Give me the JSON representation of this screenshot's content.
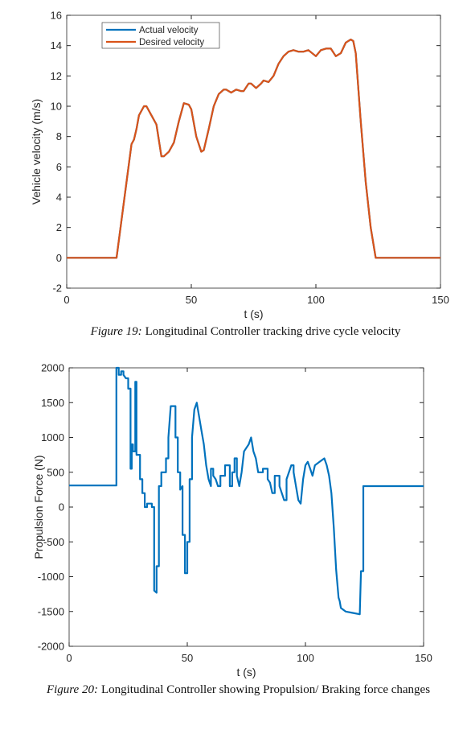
{
  "chart_data": [
    {
      "type": "line",
      "caption_label": "Figure 19:",
      "caption": "Longitudinal Controller tracking drive cycle velocity",
      "xlabel": "t (s)",
      "ylabel": "Vehicle velocity (m/s)",
      "xlim": [
        0,
        150
      ],
      "xticks": [
        0,
        50,
        100,
        150
      ],
      "ylim": [
        -2,
        16
      ],
      "yticks": [
        -2,
        0,
        2,
        4,
        6,
        8,
        10,
        12,
        14,
        16
      ],
      "legend": "upper left",
      "grid": false,
      "x": [
        0,
        20,
        24,
        26,
        27,
        28,
        29,
        31,
        32,
        34,
        36,
        38,
        39,
        41,
        43,
        45,
        47,
        49,
        50,
        52,
        54,
        55,
        57,
        59,
        61,
        63,
        64,
        66,
        68,
        70,
        71,
        73,
        74,
        76,
        78,
        79,
        81,
        83,
        85,
        87,
        89,
        91,
        93,
        95,
        97,
        100,
        102,
        104,
        106,
        108,
        110,
        112,
        114,
        115,
        116,
        118,
        120,
        122,
        124,
        150
      ],
      "series": [
        {
          "name": "Actual velocity",
          "color": "#0072bd",
          "values": [
            0,
            0,
            5,
            7.5,
            7.8,
            8.5,
            9.4,
            10,
            10,
            9.4,
            8.8,
            6.7,
            6.7,
            7,
            7.6,
            9,
            10.2,
            10.1,
            9.8,
            8,
            7,
            7.1,
            8.5,
            10,
            10.8,
            11.1,
            11.1,
            10.9,
            11.1,
            11,
            11,
            11.5,
            11.5,
            11.2,
            11.5,
            11.7,
            11.6,
            12,
            12.8,
            13.3,
            13.6,
            13.7,
            13.6,
            13.6,
            13.7,
            13.3,
            13.7,
            13.8,
            13.8,
            13.3,
            13.5,
            14.2,
            14.4,
            14.3,
            13.5,
            9,
            5,
            2,
            0,
            0
          ]
        },
        {
          "name": "Desired velocity",
          "color": "#d95319",
          "values": [
            0,
            0,
            5,
            7.5,
            7.8,
            8.5,
            9.4,
            10,
            10,
            9.4,
            8.8,
            6.7,
            6.7,
            7,
            7.6,
            9,
            10.2,
            10.1,
            9.8,
            8,
            7,
            7.1,
            8.5,
            10,
            10.8,
            11.1,
            11.1,
            10.9,
            11.1,
            11,
            11,
            11.5,
            11.5,
            11.2,
            11.5,
            11.7,
            11.6,
            12,
            12.8,
            13.3,
            13.6,
            13.7,
            13.6,
            13.6,
            13.7,
            13.3,
            13.7,
            13.8,
            13.8,
            13.3,
            13.5,
            14.2,
            14.4,
            14.3,
            13.5,
            9,
            5,
            2,
            0,
            0
          ]
        }
      ]
    },
    {
      "type": "line",
      "caption_label": "Figure 20:",
      "caption": "Longitudinal Controller showing Propulsion/ Braking force changes",
      "xlabel": "t (s)",
      "ylabel": "Propulsion Force (N)",
      "xlim": [
        0,
        150
      ],
      "xticks": [
        0,
        50,
        100,
        150
      ],
      "ylim": [
        -2000,
        2000
      ],
      "yticks": [
        -2000,
        -1500,
        -1000,
        -500,
        0,
        500,
        1000,
        1500,
        2000
      ],
      "grid": false,
      "x": [
        0,
        20,
        20,
        21,
        21,
        22,
        22,
        23,
        23,
        24,
        25,
        25,
        26,
        26,
        26.5,
        26.5,
        27,
        27,
        28,
        28,
        28.5,
        28.5,
        30,
        30,
        31,
        31,
        32,
        32,
        33,
        33,
        35,
        35,
        36,
        36,
        37,
        37,
        38,
        38,
        39,
        39,
        41,
        41,
        42,
        42,
        43,
        45,
        45,
        46,
        46,
        47,
        47,
        48,
        48,
        49,
        49,
        50,
        50,
        51,
        51,
        52,
        52,
        53,
        54,
        55,
        56,
        57,
        58,
        59,
        60,
        60,
        61,
        61,
        62,
        63,
        64,
        64,
        66,
        66,
        68,
        68,
        69,
        69,
        70,
        70,
        71,
        71,
        72,
        73,
        74,
        76,
        77,
        78,
        79,
        80,
        82,
        82,
        84,
        84,
        85,
        86,
        87,
        87,
        89,
        89,
        90,
        91,
        92,
        92,
        94,
        95,
        95,
        96,
        97,
        98,
        99,
        100,
        101,
        102,
        103,
        104,
        106,
        108,
        109,
        110,
        111,
        112,
        113,
        114,
        114.5,
        115,
        117,
        120,
        123,
        123.5,
        124.5,
        124.5,
        150
      ],
      "series": [
        {
          "name": "Propulsion force",
          "color": "#0072bd",
          "values": [
            310,
            310,
            2000,
            2000,
            1900,
            1900,
            1950,
            1950,
            1900,
            1850,
            1850,
            1700,
            1700,
            550,
            550,
            900,
            900,
            800,
            800,
            1800,
            1800,
            750,
            750,
            400,
            400,
            200,
            200,
            0,
            0,
            50,
            50,
            0,
            0,
            -1200,
            -1230,
            -850,
            -850,
            300,
            300,
            500,
            500,
            700,
            700,
            1000,
            1450,
            1450,
            1000,
            1000,
            500,
            500,
            250,
            300,
            -400,
            -400,
            -950,
            -950,
            -500,
            -500,
            400,
            400,
            1000,
            1400,
            1500,
            1300,
            1100,
            900,
            600,
            400,
            300,
            550,
            550,
            450,
            400,
            300,
            300,
            450,
            450,
            600,
            600,
            300,
            300,
            500,
            500,
            700,
            700,
            450,
            300,
            500,
            800,
            900,
            1000,
            800,
            700,
            500,
            500,
            550,
            550,
            400,
            350,
            200,
            200,
            450,
            450,
            300,
            200,
            100,
            100,
            400,
            600,
            600,
            500,
            300,
            100,
            50,
            400,
            600,
            650,
            550,
            450,
            600,
            650,
            700,
            600,
            450,
            200,
            -300,
            -900,
            -1300,
            -1350,
            -1450,
            -1500,
            -1520,
            -1540,
            -920,
            -920,
            300,
            300
          ]
        }
      ]
    }
  ]
}
